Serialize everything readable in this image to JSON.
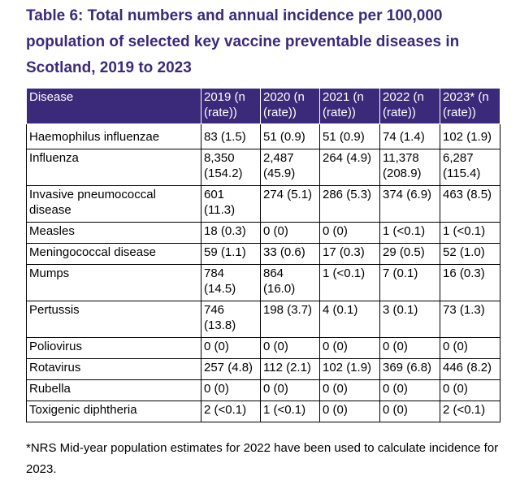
{
  "title": "Table 6: Total numbers and annual incidence per 100,000 population of selected key vaccine preventable diseases in Scotland, 2019 to 2023",
  "table": {
    "headers": [
      "Disease",
      "2019 (n (rate))",
      "2020 (n (rate))",
      "2021 (n (rate))",
      "2022 (n (rate))",
      "2023* (n (rate))"
    ],
    "rows": [
      [
        "Haemophilus influenzae",
        "83 (1.5)",
        "51 (0.9)",
        "51 (0.9)",
        "74 (1.4)",
        "102 (1.9)"
      ],
      [
        "Influenza",
        "8,350 (154.2)",
        "2,487 (45.9)",
        "264 (4.9)",
        "11,378 (208.9)",
        "6,287 (115.4)"
      ],
      [
        "Invasive pneumococcal disease",
        "601 (11.3)",
        "274 (5.1)",
        "286 (5.3)",
        "374 (6.9)",
        "463 (8.5)"
      ],
      [
        "Measles",
        "18 (0.3)",
        "0 (0)",
        "0 (0)",
        "1 (<0.1)",
        "1 (<0.1)"
      ],
      [
        "Meningococcal disease",
        "59 (1.1)",
        "33 (0.6)",
        "17 (0.3)",
        "29 (0.5)",
        "52 (1.0)"
      ],
      [
        "Mumps",
        "784 (14.5)",
        "864 (16.0)",
        "1 (<0.1)",
        "7 (0.1)",
        "16 (0.3)"
      ],
      [
        "Pertussis",
        "746 (13.8)",
        "198 (3.7)",
        "4 (0.1)",
        "3 (0.1)",
        "73 (1.3)"
      ],
      [
        "Poliovirus",
        "0 (0)",
        "0 (0)",
        "0 (0)",
        "0 (0)",
        "0 (0)"
      ],
      [
        "Rotavirus",
        "257 (4.8)",
        "112 (2.1)",
        "102 (1.9)",
        "369 (6.8)",
        "446 (8.2)"
      ],
      [
        "Rubella",
        "0 (0)",
        "0 (0)",
        "0 (0)",
        "0 (0)",
        "0 (0)"
      ],
      [
        "Toxigenic diphtheria",
        "2 (<0.1)",
        "1 (<0.1)",
        "0 (0)",
        "0 (0)",
        "2 (<0.1)"
      ]
    ]
  },
  "footnote": "*NRS Mid-year population estimates for 2022 have been used to calculate incidence for 2023.",
  "colors": {
    "accent": "#3b2a7a",
    "header_text": "#ffffff",
    "body_text": "#000000",
    "border": "#000000"
  }
}
